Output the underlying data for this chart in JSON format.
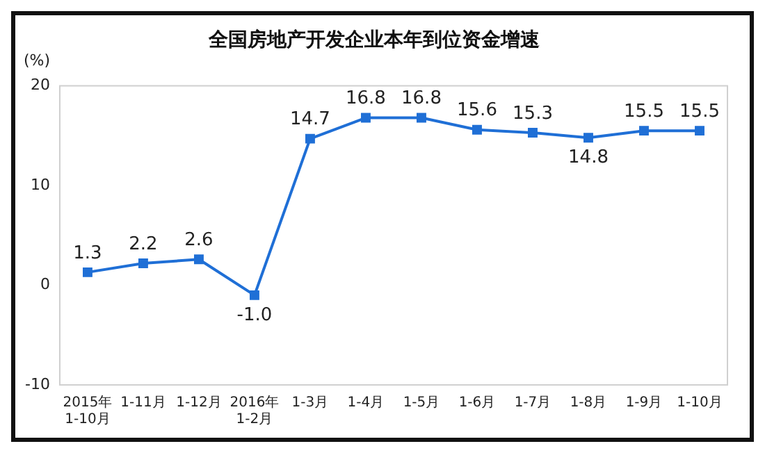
{
  "chart_data": {
    "type": "line",
    "title": "全国房地产开发企业本年到位资金增速",
    "ylabel": "(%)",
    "categories": [
      "2015年\n1-10月",
      "1-11月",
      "1-12月",
      "2016年\n1-2月",
      "1-3月",
      "1-4月",
      "1-5月",
      "1-6月",
      "1-7月",
      "1-8月",
      "1-9月",
      "1-10月"
    ],
    "series": [
      {
        "color": "#1f6fd6",
        "values": [
          1.3,
          2.2,
          2.6,
          -1.0,
          14.7,
          16.8,
          16.8,
          15.6,
          15.3,
          14.8,
          15.5,
          15.5
        ]
      }
    ],
    "value_labels": [
      "1.3",
      "2.2",
      "2.6",
      "-1.0",
      "14.7",
      "16.8",
      "16.8",
      "15.6",
      "15.3",
      "14.8",
      "15.5",
      "15.5"
    ],
    "ylim": [
      -10,
      20
    ],
    "yticks": [
      -10,
      0,
      10,
      20
    ],
    "grid": false,
    "legend": false,
    "marker": "square",
    "line_style": "solid"
  }
}
